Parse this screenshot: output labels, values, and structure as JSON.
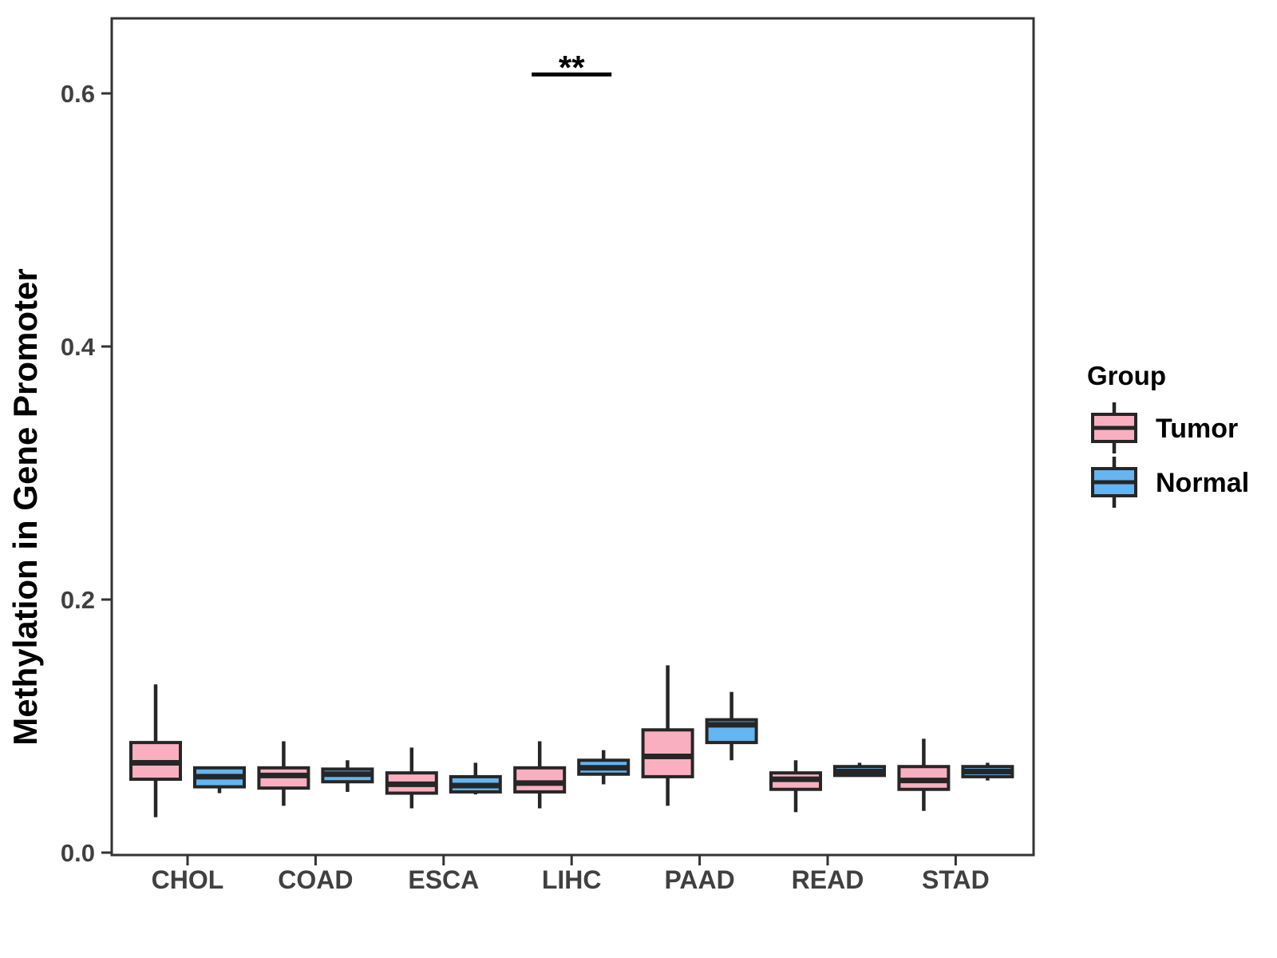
{
  "chart_data": {
    "type": "grouped_boxplot",
    "title": "",
    "xlabel": "",
    "ylabel": "Methylation in Gene Promoter",
    "ylim": [
      0,
      0.66
    ],
    "ytick_values": [
      0.0,
      0.2,
      0.4,
      0.6
    ],
    "yticks": [
      "0.0",
      "0.2",
      "0.4",
      "0.6"
    ],
    "categories": [
      "CHOL",
      "COAD",
      "ESCA",
      "LIHC",
      "PAAD",
      "READ",
      "STAD"
    ],
    "grid": "off",
    "panel_border": true,
    "legend": {
      "title": "Group",
      "position": "right"
    },
    "series": [
      {
        "name": "Tumor",
        "fill": "#F9AFC0",
        "boxes": [
          {
            "category": "CHOL",
            "min": 0.028,
            "q1": 0.058,
            "median": 0.071,
            "q3": 0.087,
            "max": 0.133
          },
          {
            "category": "COAD",
            "min": 0.037,
            "q1": 0.051,
            "median": 0.061,
            "q3": 0.067,
            "max": 0.088
          },
          {
            "category": "ESCA",
            "min": 0.035,
            "q1": 0.047,
            "median": 0.054,
            "q3": 0.063,
            "max": 0.083
          },
          {
            "category": "LIHC",
            "min": 0.035,
            "q1": 0.048,
            "median": 0.055,
            "q3": 0.067,
            "max": 0.088
          },
          {
            "category": "PAAD",
            "min": 0.037,
            "q1": 0.06,
            "median": 0.076,
            "q3": 0.097,
            "max": 0.148
          },
          {
            "category": "READ",
            "min": 0.032,
            "q1": 0.05,
            "median": 0.058,
            "q3": 0.063,
            "max": 0.073
          },
          {
            "category": "STAD",
            "min": 0.033,
            "q1": 0.05,
            "median": 0.057,
            "q3": 0.068,
            "max": 0.09
          }
        ]
      },
      {
        "name": "Normal",
        "fill": "#64B5F0",
        "boxes": [
          {
            "category": "CHOL",
            "min": 0.047,
            "q1": 0.052,
            "median": 0.06,
            "q3": 0.067,
            "max": 0.068
          },
          {
            "category": "COAD",
            "min": 0.048,
            "q1": 0.056,
            "median": 0.062,
            "q3": 0.066,
            "max": 0.073
          },
          {
            "category": "ESCA",
            "min": 0.046,
            "q1": 0.048,
            "median": 0.053,
            "q3": 0.06,
            "max": 0.071
          },
          {
            "category": "LIHC",
            "min": 0.054,
            "q1": 0.062,
            "median": 0.067,
            "q3": 0.073,
            "max": 0.081
          },
          {
            "category": "PAAD",
            "min": 0.073,
            "q1": 0.087,
            "median": 0.101,
            "q3": 0.105,
            "max": 0.127
          },
          {
            "category": "READ",
            "min": 0.06,
            "q1": 0.061,
            "median": 0.064,
            "q3": 0.068,
            "max": 0.071
          },
          {
            "category": "STAD",
            "min": 0.057,
            "q1": 0.06,
            "median": 0.064,
            "q3": 0.068,
            "max": 0.071
          }
        ]
      }
    ],
    "annotations": [
      {
        "label": "**",
        "category": "LIHC",
        "y": 0.615
      }
    ]
  },
  "theme": {
    "background": "#ffffff",
    "panel_border_color": "#333333",
    "box_stroke": "#262626",
    "tick_label_color": "#404040",
    "text_color": "#000000",
    "tumor_fill": "#F9AFC0",
    "normal_fill": "#64B5F0"
  }
}
